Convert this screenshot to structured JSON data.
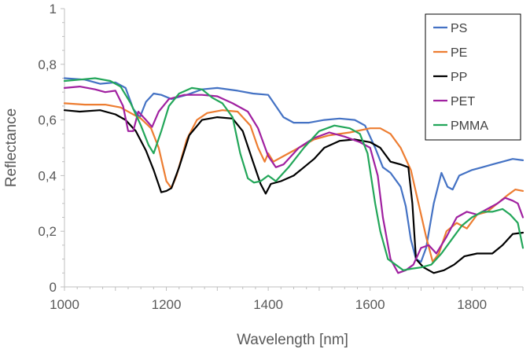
{
  "chart_data": {
    "type": "line",
    "title": "",
    "xlabel": "Wavelength  [nm]",
    "ylabel": "Reflectance",
    "xlim": [
      1000,
      1900
    ],
    "ylim": [
      0,
      1
    ],
    "x_ticks": [
      1000,
      1200,
      1400,
      1600,
      1800
    ],
    "x_tick_labels": [
      "1000",
      "1200",
      "1400",
      "1600",
      "1800"
    ],
    "y_ticks": [
      0,
      0.2,
      0.4,
      0.6,
      0.8,
      1
    ],
    "y_tick_labels": [
      "0",
      "0,2",
      "0,4",
      "0,6",
      "0,8",
      "1"
    ],
    "grid": false,
    "legend_position": "top-right",
    "series": [
      {
        "name": "PS",
        "color": "#4472C4",
        "points": [
          [
            1000,
            0.75
          ],
          [
            1040,
            0.745
          ],
          [
            1070,
            0.73
          ],
          [
            1100,
            0.735
          ],
          [
            1120,
            0.715
          ],
          [
            1135,
            0.64
          ],
          [
            1148,
            0.61
          ],
          [
            1160,
            0.665
          ],
          [
            1175,
            0.695
          ],
          [
            1190,
            0.69
          ],
          [
            1210,
            0.675
          ],
          [
            1240,
            0.69
          ],
          [
            1270,
            0.71
          ],
          [
            1300,
            0.715
          ],
          [
            1340,
            0.705
          ],
          [
            1370,
            0.695
          ],
          [
            1400,
            0.69
          ],
          [
            1430,
            0.61
          ],
          [
            1450,
            0.59
          ],
          [
            1480,
            0.59
          ],
          [
            1510,
            0.6
          ],
          [
            1540,
            0.605
          ],
          [
            1570,
            0.6
          ],
          [
            1590,
            0.58
          ],
          [
            1610,
            0.5
          ],
          [
            1625,
            0.43
          ],
          [
            1640,
            0.41
          ],
          [
            1660,
            0.36
          ],
          [
            1670,
            0.29
          ],
          [
            1680,
            0.17
          ],
          [
            1690,
            0.1
          ],
          [
            1700,
            0.09
          ],
          [
            1710,
            0.14
          ],
          [
            1725,
            0.3
          ],
          [
            1740,
            0.41
          ],
          [
            1752,
            0.36
          ],
          [
            1762,
            0.35
          ],
          [
            1775,
            0.4
          ],
          [
            1800,
            0.42
          ],
          [
            1820,
            0.43
          ],
          [
            1840,
            0.44
          ],
          [
            1860,
            0.45
          ],
          [
            1880,
            0.46
          ],
          [
            1900,
            0.455
          ]
        ]
      },
      {
        "name": "PE",
        "color": "#ED7D31",
        "points": [
          [
            1000,
            0.66
          ],
          [
            1040,
            0.655
          ],
          [
            1080,
            0.655
          ],
          [
            1110,
            0.645
          ],
          [
            1130,
            0.625
          ],
          [
            1150,
            0.605
          ],
          [
            1170,
            0.57
          ],
          [
            1185,
            0.5
          ],
          [
            1200,
            0.38
          ],
          [
            1210,
            0.355
          ],
          [
            1220,
            0.4
          ],
          [
            1240,
            0.53
          ],
          [
            1260,
            0.6
          ],
          [
            1280,
            0.625
          ],
          [
            1310,
            0.635
          ],
          [
            1340,
            0.63
          ],
          [
            1365,
            0.58
          ],
          [
            1380,
            0.5
          ],
          [
            1393,
            0.45
          ],
          [
            1400,
            0.48
          ],
          [
            1410,
            0.45
          ],
          [
            1430,
            0.47
          ],
          [
            1460,
            0.5
          ],
          [
            1490,
            0.53
          ],
          [
            1520,
            0.545
          ],
          [
            1560,
            0.555
          ],
          [
            1600,
            0.57
          ],
          [
            1620,
            0.57
          ],
          [
            1640,
            0.55
          ],
          [
            1660,
            0.5
          ],
          [
            1680,
            0.42
          ],
          [
            1695,
            0.3
          ],
          [
            1710,
            0.18
          ],
          [
            1723,
            0.09
          ],
          [
            1735,
            0.12
          ],
          [
            1750,
            0.2
          ],
          [
            1770,
            0.23
          ],
          [
            1790,
            0.21
          ],
          [
            1810,
            0.26
          ],
          [
            1830,
            0.27
          ],
          [
            1850,
            0.3
          ],
          [
            1870,
            0.33
          ],
          [
            1885,
            0.35
          ],
          [
            1900,
            0.345
          ]
        ]
      },
      {
        "name": "PP",
        "color": "#000000",
        "points": [
          [
            1000,
            0.635
          ],
          [
            1030,
            0.63
          ],
          [
            1070,
            0.635
          ],
          [
            1100,
            0.62
          ],
          [
            1120,
            0.6
          ],
          [
            1140,
            0.56
          ],
          [
            1160,
            0.49
          ],
          [
            1175,
            0.42
          ],
          [
            1190,
            0.34
          ],
          [
            1200,
            0.345
          ],
          [
            1210,
            0.355
          ],
          [
            1225,
            0.43
          ],
          [
            1245,
            0.545
          ],
          [
            1270,
            0.6
          ],
          [
            1300,
            0.61
          ],
          [
            1330,
            0.605
          ],
          [
            1350,
            0.56
          ],
          [
            1370,
            0.45
          ],
          [
            1385,
            0.37
          ],
          [
            1395,
            0.335
          ],
          [
            1405,
            0.37
          ],
          [
            1425,
            0.38
          ],
          [
            1450,
            0.4
          ],
          [
            1470,
            0.43
          ],
          [
            1490,
            0.46
          ],
          [
            1510,
            0.5
          ],
          [
            1540,
            0.525
          ],
          [
            1570,
            0.53
          ],
          [
            1600,
            0.52
          ],
          [
            1620,
            0.5
          ],
          [
            1640,
            0.45
          ],
          [
            1660,
            0.44
          ],
          [
            1675,
            0.43
          ],
          [
            1683,
            0.3
          ],
          [
            1690,
            0.1
          ],
          [
            1705,
            0.07
          ],
          [
            1725,
            0.05
          ],
          [
            1745,
            0.06
          ],
          [
            1765,
            0.08
          ],
          [
            1785,
            0.11
          ],
          [
            1810,
            0.12
          ],
          [
            1840,
            0.12
          ],
          [
            1860,
            0.15
          ],
          [
            1880,
            0.19
          ],
          [
            1900,
            0.195
          ]
        ]
      },
      {
        "name": "PET",
        "color": "#A020A0",
        "points": [
          [
            1000,
            0.715
          ],
          [
            1030,
            0.72
          ],
          [
            1060,
            0.71
          ],
          [
            1080,
            0.7
          ],
          [
            1100,
            0.705
          ],
          [
            1115,
            0.65
          ],
          [
            1125,
            0.56
          ],
          [
            1135,
            0.56
          ],
          [
            1145,
            0.63
          ],
          [
            1160,
            0.6
          ],
          [
            1172,
            0.575
          ],
          [
            1185,
            0.63
          ],
          [
            1205,
            0.675
          ],
          [
            1235,
            0.69
          ],
          [
            1270,
            0.69
          ],
          [
            1300,
            0.685
          ],
          [
            1330,
            0.66
          ],
          [
            1360,
            0.63
          ],
          [
            1380,
            0.57
          ],
          [
            1400,
            0.47
          ],
          [
            1415,
            0.43
          ],
          [
            1430,
            0.44
          ],
          [
            1460,
            0.5
          ],
          [
            1490,
            0.535
          ],
          [
            1520,
            0.555
          ],
          [
            1550,
            0.54
          ],
          [
            1580,
            0.52
          ],
          [
            1600,
            0.5
          ],
          [
            1615,
            0.4
          ],
          [
            1625,
            0.25
          ],
          [
            1640,
            0.1
          ],
          [
            1655,
            0.05
          ],
          [
            1670,
            0.06
          ],
          [
            1685,
            0.08
          ],
          [
            1700,
            0.14
          ],
          [
            1715,
            0.15
          ],
          [
            1730,
            0.12
          ],
          [
            1750,
            0.18
          ],
          [
            1770,
            0.25
          ],
          [
            1790,
            0.27
          ],
          [
            1810,
            0.26
          ],
          [
            1830,
            0.28
          ],
          [
            1850,
            0.3
          ],
          [
            1865,
            0.32
          ],
          [
            1880,
            0.31
          ],
          [
            1890,
            0.3
          ],
          [
            1900,
            0.25
          ]
        ]
      },
      {
        "name": "PMMA",
        "color": "#22A659",
        "points": [
          [
            1000,
            0.74
          ],
          [
            1030,
            0.745
          ],
          [
            1060,
            0.75
          ],
          [
            1090,
            0.74
          ],
          [
            1110,
            0.72
          ],
          [
            1130,
            0.66
          ],
          [
            1150,
            0.58
          ],
          [
            1165,
            0.51
          ],
          [
            1175,
            0.48
          ],
          [
            1190,
            0.56
          ],
          [
            1205,
            0.65
          ],
          [
            1225,
            0.695
          ],
          [
            1250,
            0.715
          ],
          [
            1270,
            0.71
          ],
          [
            1290,
            0.68
          ],
          [
            1310,
            0.66
          ],
          [
            1330,
            0.61
          ],
          [
            1345,
            0.48
          ],
          [
            1360,
            0.39
          ],
          [
            1372,
            0.375
          ],
          [
            1385,
            0.38
          ],
          [
            1400,
            0.4
          ],
          [
            1415,
            0.38
          ],
          [
            1440,
            0.43
          ],
          [
            1470,
            0.5
          ],
          [
            1500,
            0.56
          ],
          [
            1530,
            0.58
          ],
          [
            1560,
            0.57
          ],
          [
            1580,
            0.55
          ],
          [
            1595,
            0.48
          ],
          [
            1610,
            0.3
          ],
          [
            1620,
            0.2
          ],
          [
            1635,
            0.1
          ],
          [
            1650,
            0.08
          ],
          [
            1665,
            0.06
          ],
          [
            1680,
            0.065
          ],
          [
            1700,
            0.07
          ],
          [
            1720,
            0.08
          ],
          [
            1740,
            0.12
          ],
          [
            1760,
            0.17
          ],
          [
            1780,
            0.22
          ],
          [
            1800,
            0.25
          ],
          [
            1820,
            0.27
          ],
          [
            1840,
            0.27
          ],
          [
            1860,
            0.28
          ],
          [
            1875,
            0.26
          ],
          [
            1890,
            0.23
          ],
          [
            1900,
            0.14
          ]
        ]
      }
    ]
  }
}
